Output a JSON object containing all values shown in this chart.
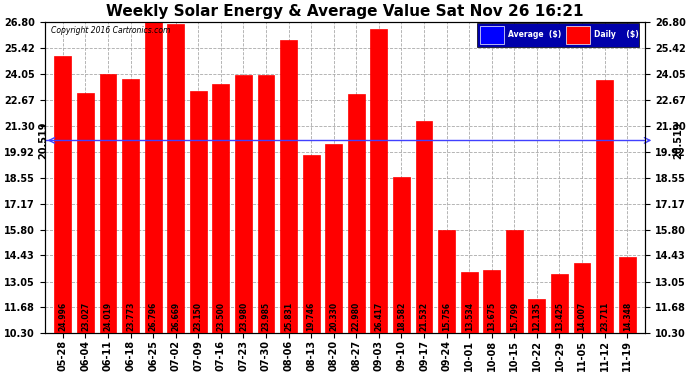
{
  "title": "Weekly Solar Energy & Average Value Sat Nov 26 16:21",
  "copyright": "Copyright 2016 Cartronics.com",
  "categories": [
    "05-28",
    "06-04",
    "06-11",
    "06-18",
    "06-25",
    "07-02",
    "07-09",
    "07-16",
    "07-23",
    "07-30",
    "08-06",
    "08-13",
    "08-20",
    "08-27",
    "09-03",
    "09-10",
    "09-17",
    "09-24",
    "10-01",
    "10-08",
    "10-15",
    "10-22",
    "10-29",
    "11-05",
    "11-12",
    "11-19"
  ],
  "values": [
    24.996,
    23.027,
    24.019,
    23.773,
    26.796,
    26.669,
    23.15,
    23.5,
    23.98,
    23.985,
    25.831,
    19.746,
    20.33,
    22.98,
    26.417,
    18.582,
    21.532,
    15.756,
    13.534,
    13.675,
    15.799,
    12.135,
    13.425,
    14.007,
    23.711,
    14.348
  ],
  "average_value": 20.519,
  "bar_color": "#ff0000",
  "average_line_color": "#4040ff",
  "background_color": "#ffffff",
  "grid_color": "#aaaaaa",
  "ylim_min": 10.3,
  "ylim_max": 26.8,
  "yticks": [
    10.3,
    11.68,
    13.05,
    14.43,
    15.8,
    17.17,
    18.55,
    19.92,
    21.3,
    22.67,
    24.05,
    25.42,
    26.8
  ],
  "title_fontsize": 11,
  "tick_fontsize": 7,
  "value_fontsize": 5.5,
  "avg_label": "20.519",
  "legend_bg_color": "#0000aa",
  "legend_text_color": "#ffffff"
}
